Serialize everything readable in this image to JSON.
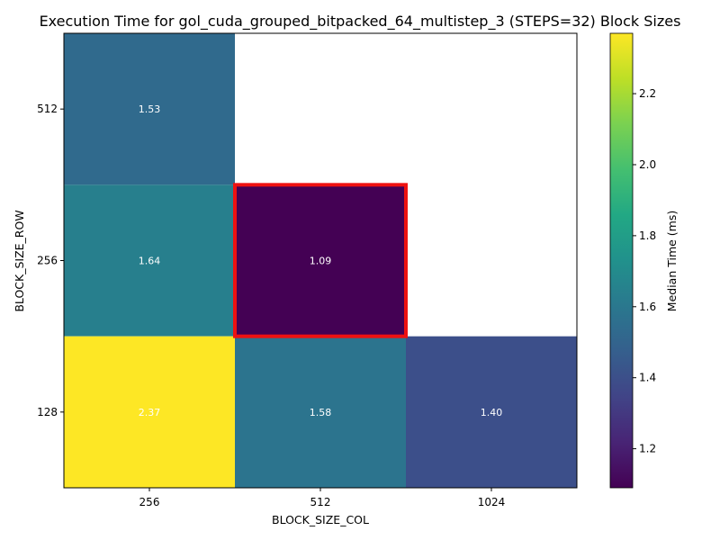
{
  "chart_data": {
    "type": "heatmap",
    "title": "Execution Time for gol_cuda_grouped_bitpacked_64_multistep_3 (STEPS=32) Block Sizes",
    "xlabel": "BLOCK_SIZE_COL",
    "ylabel": "BLOCK_SIZE_ROW",
    "x_categories": [
      "256",
      "512",
      "1024"
    ],
    "y_categories": [
      "128",
      "256",
      "512"
    ],
    "cells": [
      {
        "row": "512",
        "col": "256",
        "value": 1.53,
        "label": "1.53"
      },
      {
        "row": "256",
        "col": "256",
        "value": 1.64,
        "label": "1.64"
      },
      {
        "row": "256",
        "col": "512",
        "value": 1.09,
        "label": "1.09"
      },
      {
        "row": "128",
        "col": "256",
        "value": 2.37,
        "label": "2.37"
      },
      {
        "row": "128",
        "col": "512",
        "value": 1.58,
        "label": "1.58"
      },
      {
        "row": "128",
        "col": "1024",
        "value": 1.4,
        "label": "1.40"
      }
    ],
    "highlight": {
      "row": "256",
      "col": "512",
      "color": "#ee1111"
    },
    "colorbar": {
      "label": "Median Time (ms)",
      "colormap": "viridis",
      "range": [
        1.09,
        2.37
      ],
      "ticks": [
        "1.2",
        "1.4",
        "1.6",
        "1.8",
        "2.0",
        "2.2"
      ]
    },
    "grid": false
  }
}
